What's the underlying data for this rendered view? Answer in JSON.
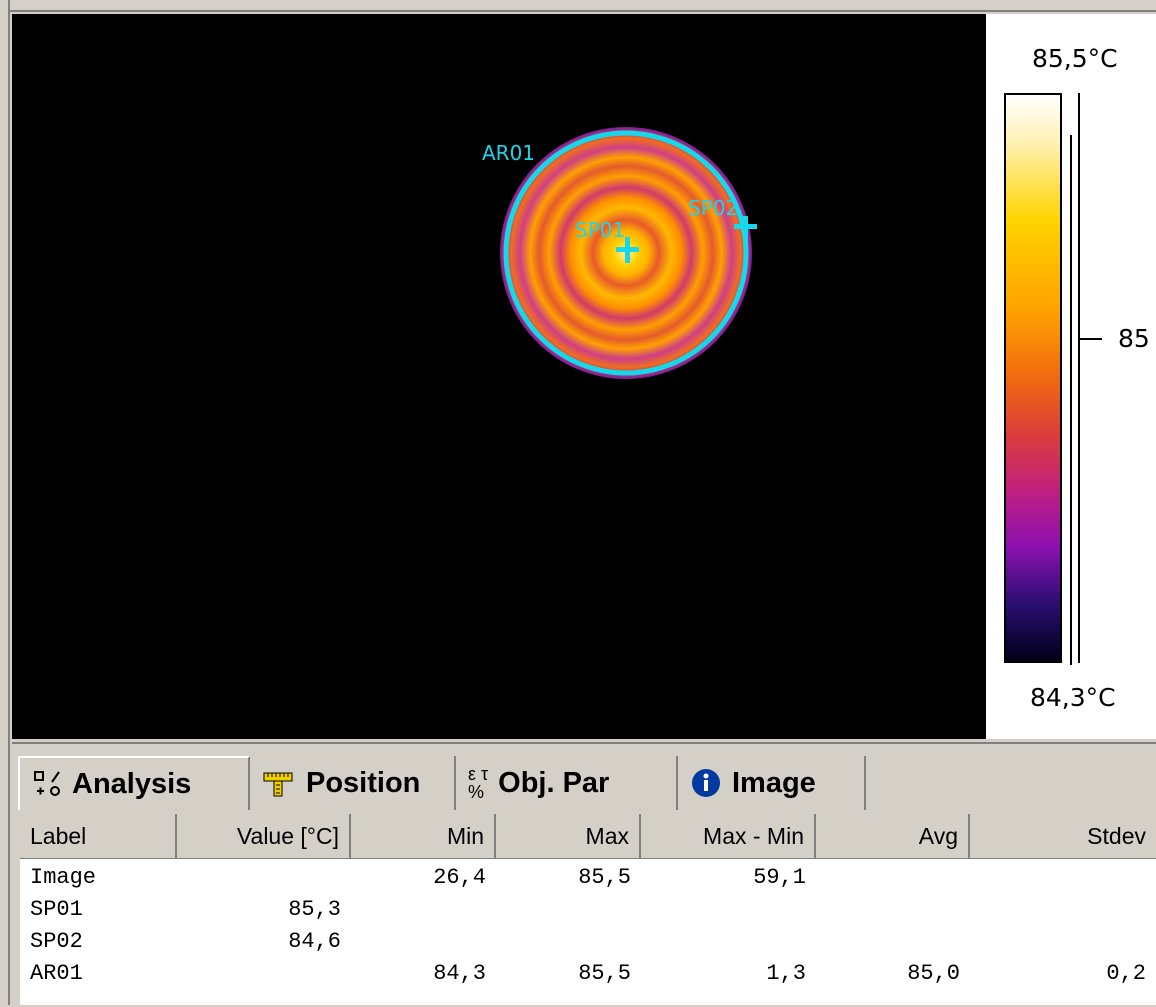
{
  "thermal_image": {
    "overlays": {
      "area_label": "AR01",
      "spot1_label": "SP01",
      "spot2_label": "SP02"
    }
  },
  "palette": {
    "max_label": "85,5°C",
    "min_label": "84,3°C",
    "mid_label": "85"
  },
  "tabs": [
    {
      "label": "Analysis",
      "icon": "analysis-tools-icon",
      "active": true
    },
    {
      "label": "Position",
      "icon": "ruler-icon",
      "active": false
    },
    {
      "label": "Obj. Par",
      "icon": "object-parameters-icon",
      "active": false
    },
    {
      "label": "Image",
      "icon": "info-icon",
      "active": false
    }
  ],
  "table": {
    "columns": [
      "Label",
      "Value [°C]",
      "Min",
      "Max",
      "Max - Min",
      "Avg",
      "Stdev"
    ],
    "rows": [
      {
        "label": "Image",
        "value": "",
        "min": "26,4",
        "max": "85,5",
        "diff": "59,1",
        "avg": "",
        "stdev": ""
      },
      {
        "label": "SP01",
        "value": "85,3",
        "min": "",
        "max": "",
        "diff": "",
        "avg": "",
        "stdev": ""
      },
      {
        "label": "SP02",
        "value": "84,6",
        "min": "",
        "max": "",
        "diff": "",
        "avg": "",
        "stdev": ""
      },
      {
        "label": "AR01",
        "value": "",
        "min": "84,3",
        "max": "85,5",
        "diff": "1,3",
        "avg": "85,0",
        "stdev": "0,2"
      }
    ]
  }
}
